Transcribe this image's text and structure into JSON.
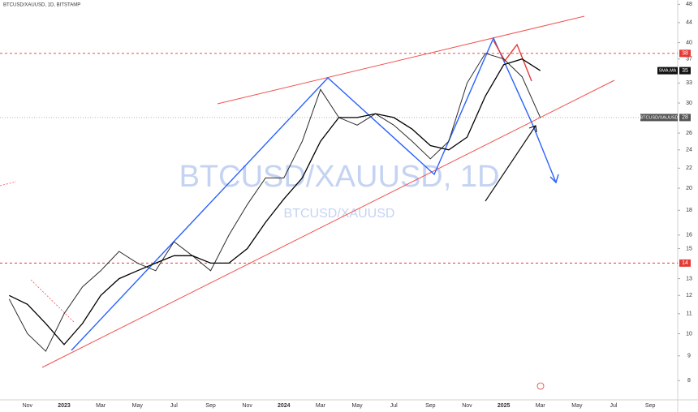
{
  "header": {
    "title": "BTCUSD/XAUUSD, 1D, BITSTAMP"
  },
  "chart_data": {
    "type": "line",
    "watermark": "BTCUSD/XAUUSD, 1D",
    "watermark_symbol": "BTCUSD/XAUUSD",
    "categories": [
      null,
      "Nov",
      null,
      "2023",
      null,
      "Mar",
      null,
      "May",
      null,
      "Jul",
      null,
      "Sep",
      null,
      "Nov",
      null,
      "2024",
      null,
      "Mar",
      null,
      "May",
      null,
      "Jul",
      null,
      "Sep",
      null,
      "Nov",
      null,
      "2025",
      null,
      "Mar",
      null,
      "May",
      null,
      "Jul",
      null,
      "Sep",
      null
    ],
    "series": [
      {
        "name": "BTCUSD/XAUUSD",
        "color": "#2a2a2a",
        "values": [
          11.8,
          10,
          9.2,
          11,
          12.5,
          13.5,
          14.8,
          14,
          13.5,
          15.5,
          14.5,
          13.5,
          16,
          18.5,
          21,
          21,
          25,
          32,
          28,
          27,
          28.5,
          27,
          25,
          23,
          25,
          33,
          38,
          37,
          34,
          28,
          null,
          null,
          null,
          null,
          null,
          null,
          null
        ]
      },
      {
        "name": "SMA,MA",
        "color": "#000000",
        "values": [
          12,
          11.5,
          10.5,
          9.5,
          10.5,
          12,
          13,
          13.5,
          14,
          14.5,
          14.5,
          14,
          14,
          15,
          17,
          19,
          21,
          25,
          28,
          28,
          28.5,
          28,
          26.5,
          24.5,
          24,
          25.5,
          31,
          36,
          37,
          35,
          null,
          null,
          null,
          null,
          null,
          null,
          null
        ]
      }
    ],
    "ylim": [
      7.3,
      49
    ],
    "yticks": [
      8,
      9,
      10,
      11,
      12,
      13,
      15,
      16,
      18,
      20,
      22,
      24,
      26,
      30,
      33,
      37,
      40,
      44,
      48
    ],
    "log_scale": true,
    "levels": [
      38,
      14
    ],
    "level_color": "#e53935"
  }
}
